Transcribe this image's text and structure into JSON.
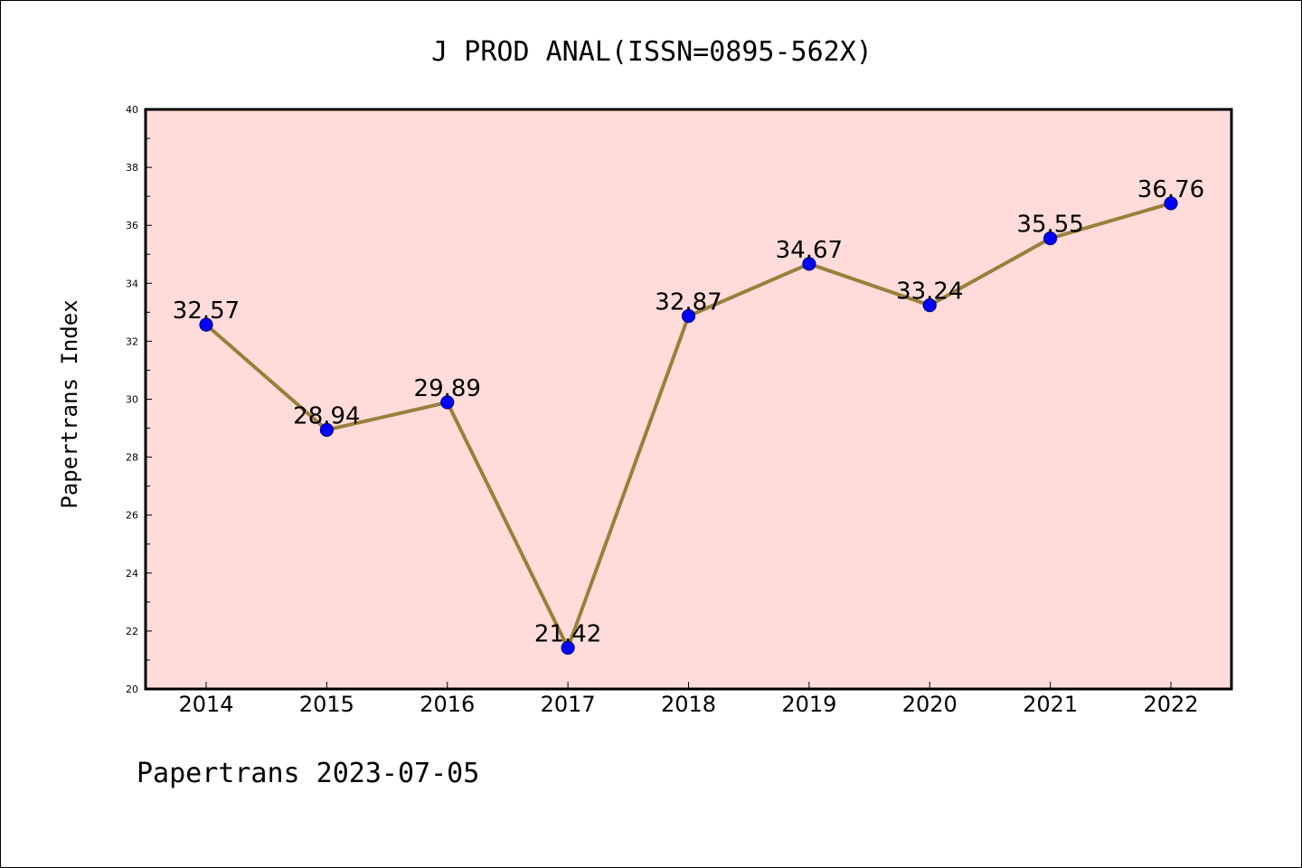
{
  "chart_data": {
    "type": "line",
    "title": "J PROD ANAL(ISSN=0895-562X)",
    "ylabel": "Papertrans Index",
    "xlabel": "",
    "categories": [
      "2014",
      "2015",
      "2016",
      "2017",
      "2018",
      "2019",
      "2020",
      "2021",
      "2022"
    ],
    "values": [
      32.57,
      28.94,
      29.89,
      21.42,
      32.87,
      34.67,
      33.24,
      35.55,
      36.76
    ],
    "data_labels": [
      "32.57",
      "28.94",
      "29.89",
      "21.42",
      "32.87",
      "34.67",
      "33.24",
      "35.55",
      "36.76"
    ],
    "ylim": [
      20,
      40
    ],
    "yticks": [
      "20",
      "22",
      "24",
      "26",
      "28",
      "30",
      "32",
      "34",
      "36",
      "38",
      "40"
    ],
    "grid": false,
    "legend": "none",
    "footer": "Papertrans 2023-07-05",
    "colors": {
      "plot_background": "#FFDCDA",
      "line": "#9A7F3A",
      "marker_fill": "#0000FF",
      "marker_edge": "#00008B",
      "frame": "#000000"
    }
  }
}
